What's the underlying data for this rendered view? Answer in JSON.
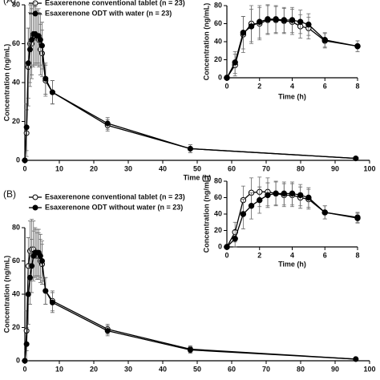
{
  "chart_data": [
    {
      "type": "line",
      "panel_label": "(A)",
      "ylabel": "Concentration (ng/mL)",
      "xlabel": "Time (h)",
      "x": [
        0,
        0.5,
        1,
        1.5,
        2,
        2.5,
        3,
        3.5,
        4,
        4.5,
        5,
        6,
        8,
        24,
        48,
        96
      ],
      "xlim": [
        0,
        100
      ],
      "xticks": [
        0,
        10,
        20,
        30,
        40,
        50,
        60,
        70,
        80,
        90,
        100
      ],
      "ylim": [
        0,
        80
      ],
      "yticks": [
        0,
        20,
        40,
        60,
        80
      ],
      "series": [
        {
          "name": "Esaxerenone conventional tablet (n = 23)",
          "color": "#000000",
          "marker_fill": "#ffffff",
          "values": [
            0,
            14,
            48,
            60,
            60,
            64,
            64,
            63,
            62,
            57,
            55,
            41,
            35,
            18,
            6,
            1
          ],
          "errors": [
            0,
            12,
            20,
            20,
            18,
            16,
            15,
            14,
            14,
            13,
            12,
            8,
            6,
            3,
            2,
            0.5
          ]
        },
        {
          "name": "Esaxerenone ODT with water (n = 23)",
          "color": "#000000",
          "marker_fill": "#000000",
          "values": [
            0,
            17,
            50,
            57,
            62,
            65,
            65,
            64,
            64,
            62,
            59,
            42,
            35,
            19,
            6,
            1
          ],
          "errors": [
            0,
            12,
            18,
            19,
            18,
            16,
            15,
            14,
            14,
            13,
            12,
            8,
            6,
            3,
            2,
            0.5
          ]
        }
      ]
    },
    {
      "type": "line",
      "ylabel": "Concentration (ng/mL)",
      "xlabel": "Time (h)",
      "x": [
        0,
        0.5,
        1,
        1.5,
        2,
        2.5,
        3,
        3.5,
        4,
        4.5,
        5,
        6,
        8
      ],
      "xlim": [
        0,
        8
      ],
      "xticks": [
        0,
        2,
        4,
        6,
        8
      ],
      "ylim": [
        0,
        80
      ],
      "yticks": [
        0,
        20,
        40,
        60,
        80
      ],
      "series": [
        {
          "color": "#000000",
          "marker_fill": "#ffffff",
          "values": [
            0,
            14,
            48,
            60,
            60,
            64,
            64,
            63,
            62,
            57,
            55,
            41,
            35
          ],
          "errors": [
            0,
            12,
            20,
            20,
            18,
            16,
            15,
            14,
            14,
            13,
            12,
            8,
            6
          ]
        },
        {
          "color": "#000000",
          "marker_fill": "#000000",
          "values": [
            0,
            17,
            50,
            57,
            62,
            65,
            65,
            64,
            64,
            62,
            59,
            42,
            35
          ],
          "errors": [
            0,
            12,
            18,
            19,
            18,
            16,
            15,
            14,
            14,
            13,
            12,
            8,
            6
          ]
        }
      ]
    },
    {
      "type": "line",
      "panel_label": "(B)",
      "ylabel": "Concentration (ng/mL)",
      "x": [
        0,
        0.5,
        1,
        1.5,
        2,
        2.5,
        3,
        3.5,
        4,
        4.5,
        5,
        6,
        8,
        24,
        48,
        96
      ],
      "xlim": [
        0,
        100
      ],
      "xticks": [
        0,
        10,
        20,
        30,
        40,
        50,
        60,
        70,
        80,
        90,
        100
      ],
      "ylim": [
        0,
        80
      ],
      "yticks": [
        0,
        20,
        40,
        60,
        80
      ],
      "series": [
        {
          "name": "Esaxerenone conventional tablet (n = 23)",
          "color": "#000000",
          "marker_fill": "#ffffff",
          "values": [
            0,
            18,
            57,
            66,
            67,
            67,
            65,
            63,
            63,
            60,
            58,
            42,
            36,
            19,
            7,
            1
          ],
          "errors": [
            0,
            12,
            17,
            18,
            18,
            17,
            15,
            14,
            14,
            13,
            12,
            8,
            6,
            3,
            2,
            0.5
          ]
        },
        {
          "name": "Esaxerenone ODT without water (n = 23)",
          "color": "#000000",
          "marker_fill": "#000000",
          "values": [
            0,
            10,
            40,
            50,
            57,
            63,
            65,
            65,
            65,
            63,
            60,
            42,
            35,
            18,
            6.5,
            1
          ],
          "errors": [
            0,
            10,
            18,
            16,
            16,
            15,
            14,
            14,
            14,
            13,
            12,
            8,
            6,
            3,
            2,
            0.5
          ]
        }
      ]
    },
    {
      "type": "line",
      "ylabel": "Concentration (ng/mL)",
      "xlabel": "Time (h)",
      "x": [
        0,
        0.5,
        1,
        1.5,
        2,
        2.5,
        3,
        3.5,
        4,
        4.5,
        5,
        6,
        8
      ],
      "xlim": [
        0,
        8
      ],
      "xticks": [
        0,
        2,
        4,
        6,
        8
      ],
      "ylim": [
        0,
        80
      ],
      "yticks": [
        0,
        20,
        40,
        60,
        80
      ],
      "series": [
        {
          "color": "#000000",
          "marker_fill": "#ffffff",
          "values": [
            0,
            18,
            57,
            66,
            67,
            67,
            65,
            63,
            63,
            60,
            58,
            42,
            36
          ],
          "errors": [
            0,
            12,
            17,
            18,
            18,
            17,
            15,
            14,
            14,
            13,
            12,
            8,
            6
          ]
        },
        {
          "color": "#000000",
          "marker_fill": "#000000",
          "values": [
            0,
            10,
            40,
            50,
            57,
            63,
            65,
            65,
            65,
            63,
            60,
            42,
            35
          ],
          "errors": [
            0,
            10,
            18,
            16,
            16,
            15,
            14,
            14,
            14,
            13,
            12,
            8,
            6
          ]
        }
      ]
    }
  ]
}
